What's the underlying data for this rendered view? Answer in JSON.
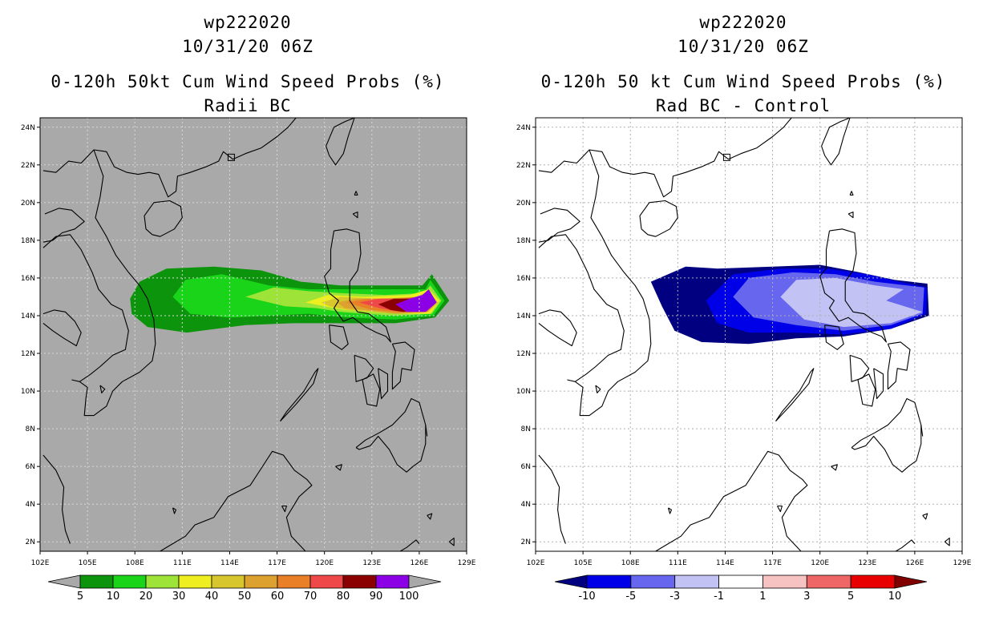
{
  "panels": [
    {
      "id": "left",
      "storm_id": "wp222020",
      "datetime": "10/31/20 06Z",
      "title": "0-120h 50kt Cum Wind Speed Probs (%)",
      "subtitle": "Radii BC",
      "background": "#a9a9a9",
      "grid_color": "#d8d8d8",
      "colorbar": {
        "colors": [
          "#0d940d",
          "#19d419",
          "#9ee337",
          "#eeee20",
          "#d8c62e",
          "#dca12e",
          "#e97f27",
          "#ee4848",
          "#8b0000",
          "#8c00e6"
        ],
        "labels": [
          "5",
          "10",
          "20",
          "30",
          "40",
          "50",
          "60",
          "70",
          "80",
          "90",
          "100"
        ],
        "end_color": "#a9a9a9"
      },
      "field_levels": [
        {
          "level": "5-10",
          "color": "#0d940d"
        },
        {
          "level": "10-20",
          "color": "#19d419"
        },
        {
          "level": "20-30",
          "color": "#9ee337"
        },
        {
          "level": "30-40",
          "color": "#eeee20"
        },
        {
          "level": "40-50",
          "color": "#d8c62e"
        },
        {
          "level": "50-60",
          "color": "#dca12e"
        },
        {
          "level": "60-70",
          "color": "#e97f27"
        },
        {
          "level": "70-80",
          "color": "#ee4848"
        },
        {
          "level": "80-90",
          "color": "#8b0000"
        },
        {
          "level": "90-100",
          "color": "#8c00e6"
        }
      ]
    },
    {
      "id": "right",
      "storm_id": "wp222020",
      "datetime": "10/31/20 06Z",
      "title": "0-120h 50 kt Cum Wind Speed Probs (%)",
      "subtitle": "Rad BC - Control",
      "background": "#ffffff",
      "grid_color": "#b0b0b0",
      "colorbar": {
        "colors": [
          "#0000e8",
          "#6666ee",
          "#c2c2f5",
          "#ffffff",
          "#f6c2c2",
          "#ee6666",
          "#e80000"
        ],
        "labels": [
          "-10",
          "-5",
          "-3",
          "-1",
          "1",
          "3",
          "5",
          "10"
        ],
        "low_end_color": "#000080",
        "high_end_color": "#800000"
      },
      "field_levels": [
        {
          "level": "<-10",
          "color": "#000080"
        },
        {
          "level": "-10 to -5",
          "color": "#0000e8"
        },
        {
          "level": "-5 to -3",
          "color": "#6666ee"
        },
        {
          "level": "-3 to -1",
          "color": "#c2c2f5"
        }
      ]
    }
  ],
  "axes": {
    "lon_labels": [
      "102E",
      "105E",
      "108E",
      "111E",
      "114E",
      "117E",
      "120E",
      "123E",
      "126E",
      "129E"
    ],
    "lat_labels": [
      "2N",
      "4N",
      "6N",
      "8N",
      "10N",
      "12N",
      "14N",
      "16N",
      "18N",
      "20N",
      "22N",
      "24N"
    ],
    "lon_range": [
      102,
      129
    ],
    "lat_range": [
      1.5,
      24.5
    ]
  }
}
